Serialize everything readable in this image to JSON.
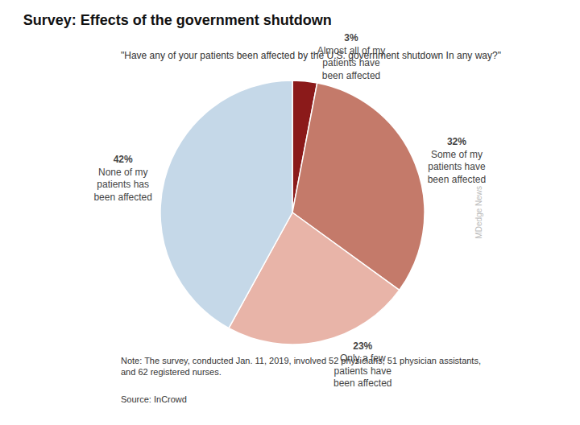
{
  "chart_data": {
    "type": "pie",
    "title": "Survey: Effects of the government shutdown",
    "subtitle": "\"Have any of your patients been affected by the U.S. government shutdown In any way?\"",
    "categories": [
      "Almost all of my\npatients have\nbeen affected",
      "Some of my\npatients have\nbeen affected",
      "Only a few\npatients have\nbeen affected",
      "None of my\npatients has\nbeen affected"
    ],
    "values": [
      3,
      32,
      23,
      42
    ],
    "value_labels": [
      "3%",
      "32%",
      "23%",
      "42%"
    ],
    "data_labels": true,
    "colors": [
      "#8b1a1a",
      "#c47a6a",
      "#e8b4a8",
      "#c5d8e8"
    ],
    "note": "Note: The survey, conducted Jan. 11, 2019, involved 52 physicians, 51 physician assistants,\nand 62 registered nurses.",
    "source": "Source: InCrowd",
    "watermark": "MDedge News"
  }
}
